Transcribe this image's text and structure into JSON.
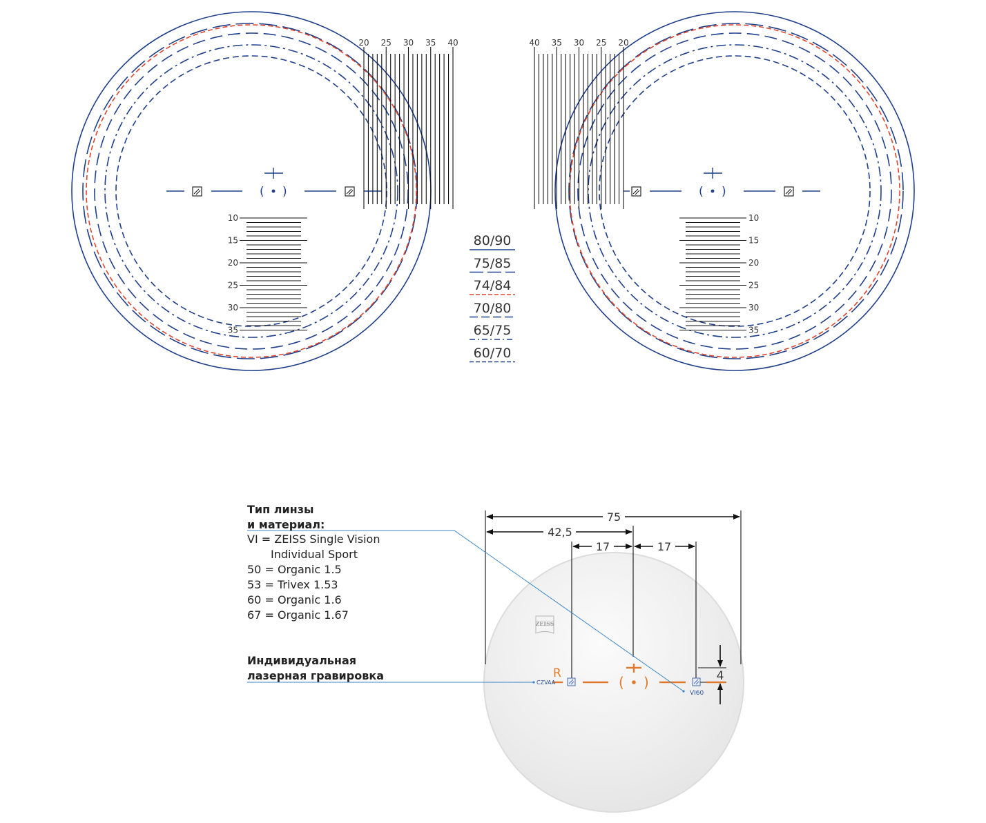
{
  "colors": {
    "ring_blue": "#1f3f8a",
    "ring_red": "#e0442a",
    "scale_black": "#111111",
    "engraving_orange": "#e07a2e",
    "leader_blue": "#3a86c8",
    "lens_fill": "#eeeeee"
  },
  "top_diagram": {
    "left_lens": {
      "vertical_scale_labels": [
        "20",
        "25",
        "30",
        "35",
        "40"
      ],
      "horizontal_scale_labels": [
        "10",
        "15",
        "20",
        "25",
        "30",
        "35"
      ]
    },
    "right_lens": {
      "vertical_scale_labels": [
        "40",
        "35",
        "30",
        "25",
        "20"
      ],
      "horizontal_scale_labels": [
        "10",
        "15",
        "20",
        "25",
        "30",
        "35"
      ]
    },
    "legend": [
      {
        "label": "80/90",
        "style": "solid",
        "color": "#1f3f8a"
      },
      {
        "label": "75/85",
        "style": "long-dash",
        "color": "#1f3f8a"
      },
      {
        "label": "74/84",
        "style": "short-dash",
        "color": "#e0442a"
      },
      {
        "label": "70/80",
        "style": "dash",
        "color": "#1f3f8a"
      },
      {
        "label": "65/75",
        "style": "dash-dot",
        "color": "#1f3f8a"
      },
      {
        "label": "60/70",
        "style": "short-dash",
        "color": "#1f3f8a"
      }
    ]
  },
  "bottom_diagram": {
    "lens_type_heading_line1": "Тип линзы",
    "lens_type_heading_line2": "и материал:",
    "lens_type_items": [
      "VI = ZEISS Single Vision",
      "Individual Sport",
      "50 = Organic 1.5",
      "53 = Trivex 1.53",
      "60 = Organic 1.6",
      "67 = Organic 1.67"
    ],
    "engraving_heading_line1": "Индивидуальная",
    "engraving_heading_line2": "лазерная гравировка",
    "dimensions": {
      "total": "75",
      "to_center": "42,5",
      "left_offset": "17",
      "right_offset": "17",
      "vertical": "4"
    },
    "engravings": {
      "side_marker": "R",
      "individual_code": "CZVAA",
      "lens_code": "VI60",
      "logo": "ZEISS"
    }
  }
}
